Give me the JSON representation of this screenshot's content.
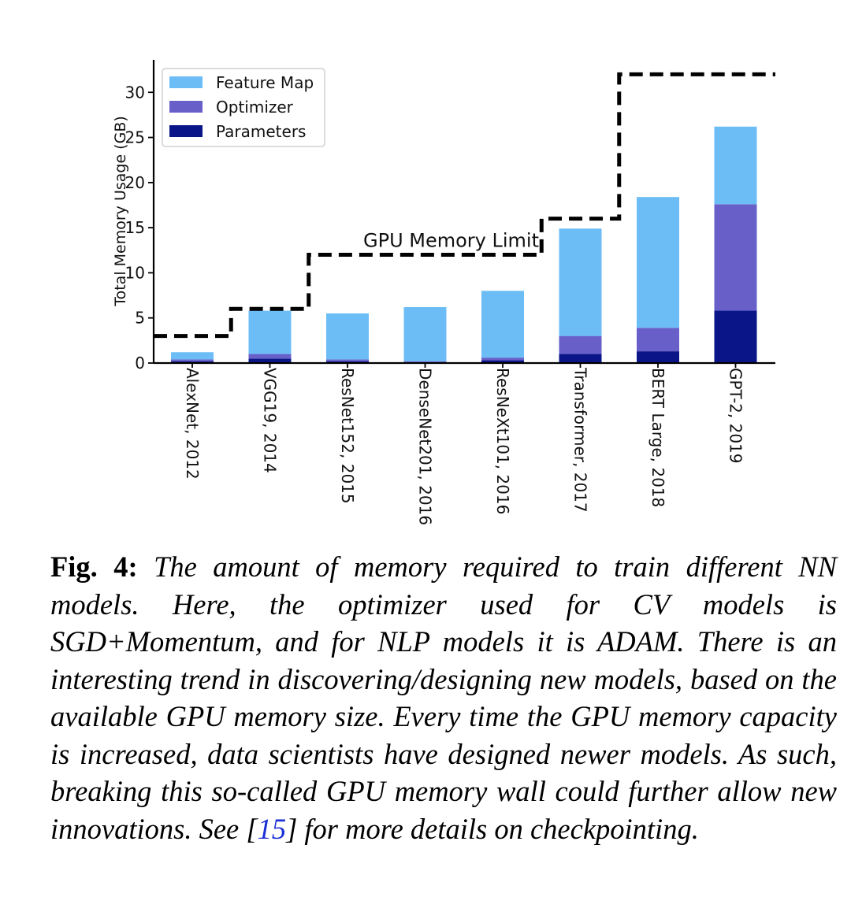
{
  "chart_data": {
    "type": "bar",
    "stacked": true,
    "categories": [
      "AlexNet, 2012",
      "VGG19, 2014",
      "ResNet152, 2015",
      "DenseNet201, 2016",
      "ResNeXt101, 2016",
      "Transformer, 2017",
      "BERT Large, 2018",
      "GPT-2, 2019"
    ],
    "series": [
      {
        "name": "Parameters",
        "color": "#0a1688",
        "values": [
          0.2,
          0.5,
          0.2,
          0.1,
          0.3,
          1.0,
          1.3,
          5.8
        ]
      },
      {
        "name": "Optimizer",
        "color": "#6860c8",
        "values": [
          0.2,
          0.5,
          0.2,
          0.1,
          0.3,
          2.0,
          2.6,
          11.8
        ]
      },
      {
        "name": "Feature Map",
        "color": "#6cbdf6",
        "values": [
          0.8,
          4.8,
          5.1,
          6.0,
          7.4,
          11.9,
          14.5,
          8.6
        ]
      }
    ],
    "line": {
      "name": "GPU Memory Limit",
      "style": "dashed",
      "color": "#000000",
      "steps": [
        {
          "from": "AlexNet, 2012",
          "to": "AlexNet, 2012",
          "value": 3
        },
        {
          "from": "VGG19, 2014",
          "to": "VGG19, 2014",
          "value": 6
        },
        {
          "from": "ResNet152, 2015",
          "to": "ResNeXt101, 2016",
          "value": 12
        },
        {
          "from": "Transformer, 2017",
          "to": "Transformer, 2017",
          "value": 16
        },
        {
          "from": "BERT Large, 2018",
          "to": "GPT-2, 2019",
          "value": 32
        }
      ]
    },
    "ylabel": "Total Memory Usage (GB)",
    "xlabel": "",
    "ylim": [
      0,
      33.6
    ],
    "yticks": [
      0,
      5,
      10,
      15,
      20,
      25,
      30
    ],
    "legend": {
      "placement": "top-left",
      "order": [
        "Feature Map",
        "Optimizer",
        "Parameters"
      ]
    },
    "grid": false
  },
  "caption": {
    "label": "Fig. 4:",
    "text_before_ref": "The amount of memory required to train different NN models. Here, the optimizer used for CV models is SGD+Momentum, and for NLP models it is ADAM. There is an interesting trend in discovering/designing new models, based on the available GPU memory size. Every time the GPU memory capacity is increased, data scientists have designed newer models. As such, breaking this so-called GPU memory wall could further allow new innovations. See [",
    "ref": "15",
    "text_after_ref": "] for more details on checkpointing."
  }
}
